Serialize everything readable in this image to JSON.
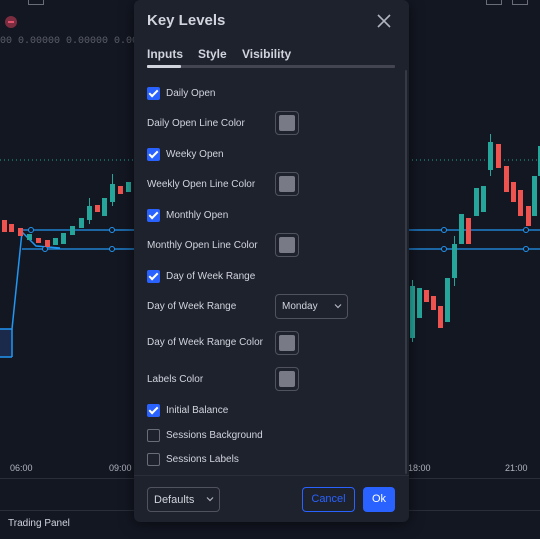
{
  "background": {
    "price_values": "00 0.00000 0.00000 0.00000 0.00000",
    "time_labels": [
      "06:00",
      "09:00",
      "18:00",
      "21:00"
    ],
    "bottom_panel": "Trading Panel",
    "colors": {
      "bullish": "#26a69a",
      "bearish": "#ef5350",
      "level_line": "#2196f3"
    }
  },
  "dialog": {
    "title": "Key Levels",
    "tabs": [
      {
        "label": "Inputs",
        "active": true
      },
      {
        "label": "Style",
        "active": false
      },
      {
        "label": "Visibility",
        "active": false
      }
    ],
    "inputs": {
      "daily_open": {
        "label": "Daily Open",
        "checked": true
      },
      "daily_open_color": {
        "label": "Daily Open Line Color"
      },
      "weekly_open": {
        "label": "Weeky Open",
        "checked": true
      },
      "weekly_open_color": {
        "label": "Weekly Open Line Color"
      },
      "monthly_open": {
        "label": "Monthly Open",
        "checked": true
      },
      "monthly_open_color": {
        "label": "Monthly Open Line Color"
      },
      "dow_range": {
        "label": "Day of Week Range",
        "checked": true
      },
      "dow_range_select": {
        "label": "Day of Week Range",
        "value": "Monday"
      },
      "dow_range_color": {
        "label": "Day of Week Range Color"
      },
      "labels_color": {
        "label": "Labels Color"
      },
      "initial_balance": {
        "label": "Initial Balance",
        "checked": true
      },
      "sessions_background": {
        "label": "Sessions Background",
        "checked": false
      },
      "sessions_labels": {
        "label": "Sessions Labels",
        "checked": false
      }
    },
    "footer": {
      "defaults_label": "Defaults",
      "cancel_label": "Cancel",
      "ok_label": "Ok"
    },
    "accent_color": "#2962ff"
  }
}
